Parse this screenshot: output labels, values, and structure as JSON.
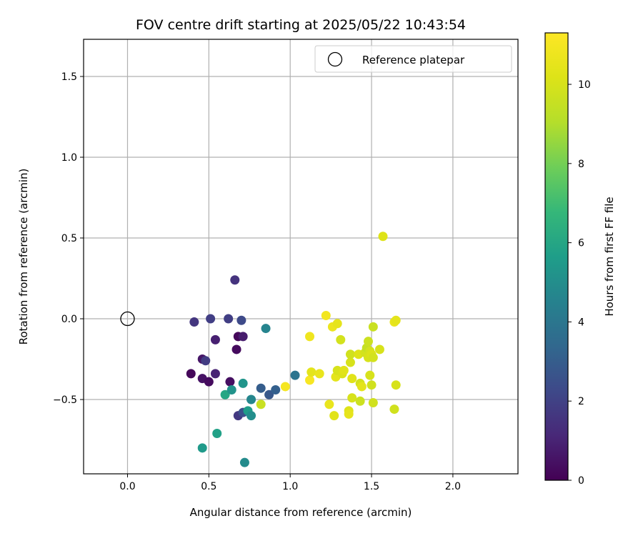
{
  "chart_data": {
    "type": "scatter",
    "title": "FOV centre drift starting at 2025/05/22 10:43:54",
    "xlabel": "Angular distance from reference (arcmin)",
    "ylabel": "Rotation from reference (arcmin)",
    "xlim": [
      -0.27,
      2.4
    ],
    "ylim": [
      -0.96,
      1.73
    ],
    "xticks": [
      0.0,
      0.5,
      1.0,
      1.5,
      2.0
    ],
    "xtick_labels": [
      "0.0",
      "0.5",
      "1.0",
      "1.5",
      "2.0"
    ],
    "yticks": [
      -0.5,
      0.0,
      0.5,
      1.0,
      1.5
    ],
    "ytick_labels": [
      "−0.5",
      "0.0",
      "0.5",
      "1.0",
      "1.5"
    ],
    "grid": true,
    "legend": {
      "placement": "top-right",
      "entries": [
        {
          "label": "Reference platepar",
          "marker": "open-circle"
        }
      ]
    },
    "reference_point": {
      "x": 0.0,
      "y": 0.0
    },
    "colorbar": {
      "label": "Hours from first FF file",
      "range": [
        0,
        11.3
      ],
      "ticks": [
        0,
        2,
        4,
        6,
        8,
        10
      ],
      "tick_labels": [
        "0",
        "2",
        "4",
        "6",
        "8",
        "10"
      ],
      "colormap": "viridis"
    },
    "points": [
      {
        "x": 0.39,
        "y": -0.34,
        "c": 0.2
      },
      {
        "x": 0.46,
        "y": -0.37,
        "c": 0.5
      },
      {
        "x": 0.5,
        "y": -0.39,
        "c": 0.3
      },
      {
        "x": 0.46,
        "y": -0.25,
        "c": 0.6
      },
      {
        "x": 0.48,
        "y": -0.26,
        "c": 1.8
      },
      {
        "x": 0.54,
        "y": -0.34,
        "c": 1.0
      },
      {
        "x": 0.54,
        "y": -0.13,
        "c": 0.9
      },
      {
        "x": 0.63,
        "y": -0.39,
        "c": 0.4
      },
      {
        "x": 0.67,
        "y": -0.19,
        "c": 0.3
      },
      {
        "x": 0.68,
        "y": -0.11,
        "c": 0.2
      },
      {
        "x": 0.71,
        "y": -0.11,
        "c": 0.8
      },
      {
        "x": 0.41,
        "y": -0.02,
        "c": 1.6
      },
      {
        "x": 0.51,
        "y": -0.0,
        "c": 1.9
      },
      {
        "x": 0.62,
        "y": -0.0,
        "c": 1.9
      },
      {
        "x": 0.7,
        "y": -0.01,
        "c": 2.3
      },
      {
        "x": 0.66,
        "y": 0.24,
        "c": 1.5
      },
      {
        "x": 0.68,
        "y": -0.6,
        "c": 1.7
      },
      {
        "x": 0.71,
        "y": -0.58,
        "c": 2.5
      },
      {
        "x": 0.82,
        "y": -0.43,
        "c": 3.0
      },
      {
        "x": 0.87,
        "y": -0.47,
        "c": 2.8
      },
      {
        "x": 0.91,
        "y": -0.44,
        "c": 3.1
      },
      {
        "x": 0.85,
        "y": -0.06,
        "c": 4.6
      },
      {
        "x": 1.03,
        "y": -0.35,
        "c": 3.9
      },
      {
        "x": 0.71,
        "y": -0.4,
        "c": 5.3
      },
      {
        "x": 0.76,
        "y": -0.5,
        "c": 4.7
      },
      {
        "x": 0.74,
        "y": -0.57,
        "c": 5.6
      },
      {
        "x": 0.76,
        "y": -0.6,
        "c": 5.0
      },
      {
        "x": 0.6,
        "y": -0.47,
        "c": 6.0
      },
      {
        "x": 0.64,
        "y": -0.44,
        "c": 5.2
      },
      {
        "x": 0.55,
        "y": -0.71,
        "c": 5.8
      },
      {
        "x": 0.46,
        "y": -0.8,
        "c": 5.5
      },
      {
        "x": 0.72,
        "y": -0.89,
        "c": 4.9
      },
      {
        "x": 0.82,
        "y": -0.53,
        "c": 9.6
      },
      {
        "x": 0.97,
        "y": -0.42,
        "c": 11.0
      },
      {
        "x": 1.12,
        "y": -0.11,
        "c": 10.8
      },
      {
        "x": 1.12,
        "y": -0.38,
        "c": 11.1
      },
      {
        "x": 1.13,
        "y": -0.33,
        "c": 10.4
      },
      {
        "x": 1.18,
        "y": -0.34,
        "c": 10.6
      },
      {
        "x": 1.22,
        "y": 0.02,
        "c": 10.9
      },
      {
        "x": 1.26,
        "y": -0.05,
        "c": 10.7
      },
      {
        "x": 1.29,
        "y": -0.03,
        "c": 10.5
      },
      {
        "x": 1.24,
        "y": -0.53,
        "c": 10.6
      },
      {
        "x": 1.27,
        "y": -0.6,
        "c": 10.3
      },
      {
        "x": 1.28,
        "y": -0.36,
        "c": 10.4
      },
      {
        "x": 1.29,
        "y": -0.32,
        "c": 10.0
      },
      {
        "x": 1.31,
        "y": -0.13,
        "c": 9.9
      },
      {
        "x": 1.32,
        "y": -0.34,
        "c": 10.1
      },
      {
        "x": 1.33,
        "y": -0.32,
        "c": 10.3
      },
      {
        "x": 1.36,
        "y": -0.57,
        "c": 10.2
      },
      {
        "x": 1.36,
        "y": -0.59,
        "c": 10.5
      },
      {
        "x": 1.37,
        "y": -0.27,
        "c": 10.0
      },
      {
        "x": 1.37,
        "y": -0.22,
        "c": 9.8
      },
      {
        "x": 1.38,
        "y": -0.37,
        "c": 10.3
      },
      {
        "x": 1.38,
        "y": -0.49,
        "c": 10.0
      },
      {
        "x": 1.42,
        "y": -0.22,
        "c": 10.2
      },
      {
        "x": 1.43,
        "y": -0.4,
        "c": 9.9
      },
      {
        "x": 1.43,
        "y": -0.51,
        "c": 9.7
      },
      {
        "x": 1.44,
        "y": -0.42,
        "c": 10.4
      },
      {
        "x": 1.46,
        "y": -0.21,
        "c": 9.9
      },
      {
        "x": 1.47,
        "y": -0.18,
        "c": 9.5
      },
      {
        "x": 1.48,
        "y": -0.14,
        "c": 9.7
      },
      {
        "x": 1.48,
        "y": -0.24,
        "c": 10.0
      },
      {
        "x": 1.49,
        "y": -0.2,
        "c": 9.9
      },
      {
        "x": 1.49,
        "y": -0.35,
        "c": 10.0
      },
      {
        "x": 1.5,
        "y": -0.22,
        "c": 10.1
      },
      {
        "x": 1.5,
        "y": -0.41,
        "c": 9.8
      },
      {
        "x": 1.51,
        "y": -0.05,
        "c": 9.6
      },
      {
        "x": 1.51,
        "y": -0.52,
        "c": 9.8
      },
      {
        "x": 1.51,
        "y": -0.24,
        "c": 9.9
      },
      {
        "x": 1.55,
        "y": -0.19,
        "c": 10.0
      },
      {
        "x": 1.57,
        "y": 0.51,
        "c": 10.2
      },
      {
        "x": 1.64,
        "y": -0.02,
        "c": 10.6
      },
      {
        "x": 1.65,
        "y": -0.01,
        "c": 10.4
      },
      {
        "x": 1.64,
        "y": -0.56,
        "c": 9.8
      },
      {
        "x": 1.65,
        "y": -0.41,
        "c": 10.0
      }
    ]
  }
}
